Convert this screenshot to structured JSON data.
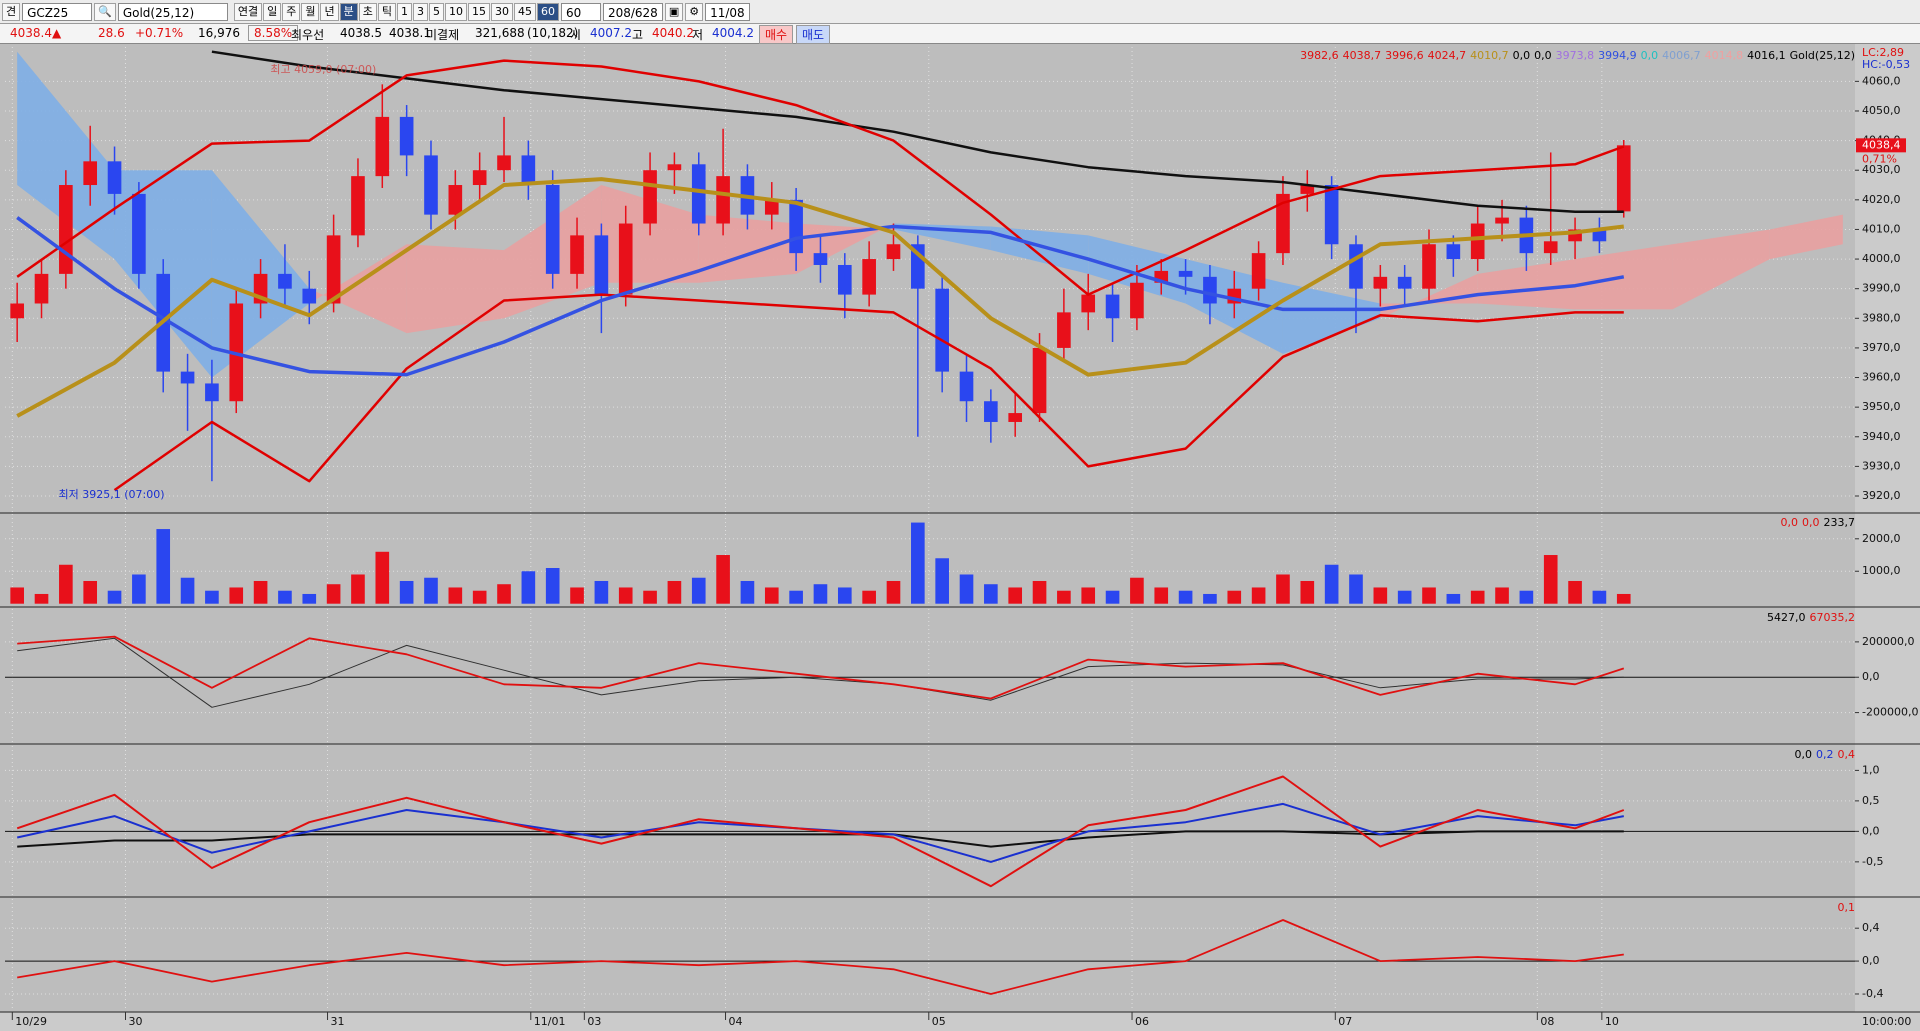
{
  "toolbar": {
    "corner": "견",
    "symbol": "GCZ25",
    "name": "Gold(25,12)",
    "buttons": [
      "연결",
      "일",
      "주",
      "월",
      "년",
      "분",
      "초",
      "틱",
      "1",
      "3",
      "5",
      "10",
      "15",
      "30",
      "45",
      "60"
    ],
    "period": "60",
    "count": "208/628",
    "date": "11/08"
  },
  "quote": {
    "price": "4038.4▲",
    "change": "28.6",
    "change_pct": "+0.71%",
    "volume": "16,976",
    "volume_pct": "8.58%",
    "best_label": "최우선",
    "best_ask": "4038.5",
    "best_bid": "4038.1",
    "oi_label": "미결제",
    "oi": "321,688",
    "oi_change": "(10,182)",
    "open_label": "시",
    "open": "4007.2",
    "high_label": "고",
    "high": "4040.2",
    "low_label": "저",
    "low": "4004.2",
    "buy": "매수",
    "sell": "매도"
  },
  "xlim": [
    -0.5,
    75.5
  ],
  "xticks": [
    {
      "value": -0.2,
      "label": "10/29"
    },
    {
      "value": 4.45,
      "label": "30"
    },
    {
      "value": 12.75,
      "label": "31"
    },
    {
      "value": 21.1,
      "label": "11/01"
    },
    {
      "value": 23.3,
      "label": "03"
    },
    {
      "value": 29.1,
      "label": "04"
    },
    {
      "value": 37.45,
      "label": "05"
    },
    {
      "value": 45.8,
      "label": "06"
    },
    {
      "value": 54.15,
      "label": "07"
    },
    {
      "value": 62.45,
      "label": "08"
    },
    {
      "value": 65.1,
      "label": "10"
    }
  ],
  "time_label": "10:00:00",
  "line_x": [
    0,
    4,
    8,
    12,
    16,
    20,
    24,
    28,
    32,
    36,
    40,
    44,
    48,
    52,
    56,
    60,
    64,
    66
  ],
  "price_panel": {
    "type": "candlestick",
    "legend": [
      {
        "text": "3982,6",
        "color": "#e01010"
      },
      {
        "text": "4038,7",
        "color": "#e01010"
      },
      {
        "text": "3996,6",
        "color": "#e01010"
      },
      {
        "text": "4024,7",
        "color": "#e01010"
      },
      {
        "text": "4010,7",
        "color": "#b8901a"
      },
      {
        "text": "0,0",
        "color": "#000000"
      },
      {
        "text": "0,0",
        "color": "#000000"
      },
      {
        "text": "3973,8",
        "color": "#a070e0"
      },
      {
        "text": "3994,9",
        "color": "#3050e0"
      },
      {
        "text": "0,0",
        "color": "#20c0c0"
      },
      {
        "text": "4006,7",
        "color": "#80a0d0"
      },
      {
        "text": "4014,8",
        "color": "#f0a0a0"
      },
      {
        "text": "4016,1",
        "color": "#000000"
      },
      {
        "text": "Gold(25,12)",
        "color": "#000000"
      }
    ],
    "lc": "LC:2,89",
    "hc": "HC:-0,53",
    "high_note": "최고 4059,0 (07:00)",
    "low_note": "최저 3925,1 (07:00)",
    "last": {
      "value": 4038.4,
      "label": "4038,4"
    },
    "last_pct": "0,71%",
    "ylim": [
      3914.6,
      4071.6
    ],
    "yticks": [
      {
        "value": 3920,
        "label": "3920,0"
      },
      {
        "value": 3930,
        "label": "3930,0"
      },
      {
        "value": 3940,
        "label": "3940,0"
      },
      {
        "value": 3950,
        "label": "3950,0"
      },
      {
        "value": 3960,
        "label": "3960,0"
      },
      {
        "value": 3970,
        "label": "3970,0"
      },
      {
        "value": 3980,
        "label": "3980,0"
      },
      {
        "value": 3990,
        "label": "3990,0"
      },
      {
        "value": 4000,
        "label": "4000,0"
      },
      {
        "value": 4010,
        "label": "4010,0"
      },
      {
        "value": 4020,
        "label": "4020,0"
      },
      {
        "value": 4030,
        "label": "4030,0"
      },
      {
        "value": 4040,
        "label": "4040,0"
      },
      {
        "value": 4050,
        "label": "4050,0"
      },
      {
        "value": 4060,
        "label": "4060,0"
      }
    ],
    "up_color": "#e8101a",
    "down_color": "#2a46f0",
    "candles": [
      [
        3980,
        3992,
        3972,
        3985
      ],
      [
        3985,
        4000,
        3980,
        3995
      ],
      [
        3995,
        4030,
        3990,
        4025
      ],
      [
        4025,
        4045,
        4018,
        4033
      ],
      [
        4033,
        4038,
        4015,
        4022
      ],
      [
        4022,
        4026,
        3990,
        3995
      ],
      [
        3995,
        4000,
        3955,
        3962
      ],
      [
        3962,
        3968,
        3942,
        3958
      ],
      [
        3958,
        3966,
        3925,
        3952
      ],
      [
        3952,
        3990,
        3948,
        3985
      ],
      [
        3985,
        4000,
        3980,
        3995
      ],
      [
        3995,
        4005,
        3984,
        3990
      ],
      [
        3990,
        3996,
        3978,
        3985
      ],
      [
        3985,
        4015,
        3982,
        4008
      ],
      [
        4008,
        4034,
        4004,
        4028
      ],
      [
        4028,
        4059,
        4024,
        4048
      ],
      [
        4048,
        4052,
        4028,
        4035
      ],
      [
        4035,
        4040,
        4010,
        4015
      ],
      [
        4015,
        4030,
        4010,
        4025
      ],
      [
        4025,
        4036,
        4020,
        4030
      ],
      [
        4030,
        4048,
        4026,
        4035
      ],
      [
        4035,
        4040,
        4020,
        4025
      ],
      [
        4025,
        4030,
        3990,
        3995
      ],
      [
        3995,
        4014,
        3990,
        4008
      ],
      [
        4008,
        4012,
        3975,
        3988
      ],
      [
        3988,
        4018,
        3984,
        4012
      ],
      [
        4012,
        4036,
        4008,
        4030
      ],
      [
        4030,
        4036,
        4022,
        4032
      ],
      [
        4032,
        4036,
        4008,
        4012
      ],
      [
        4012,
        4044,
        4008,
        4028
      ],
      [
        4028,
        4032,
        4010,
        4015
      ],
      [
        4015,
        4026,
        4010,
        4020
      ],
      [
        4020,
        4024,
        3996,
        4002
      ],
      [
        4002,
        4008,
        3992,
        3998
      ],
      [
        3998,
        4002,
        3980,
        3988
      ],
      [
        3988,
        4006,
        3984,
        4000
      ],
      [
        4000,
        4012,
        3996,
        4005
      ],
      [
        4005,
        4008,
        3940,
        3990
      ],
      [
        3990,
        3994,
        3955,
        3962
      ],
      [
        3962,
        3968,
        3945,
        3952
      ],
      [
        3952,
        3956,
        3938,
        3945
      ],
      [
        3945,
        3955,
        3940,
        3948
      ],
      [
        3948,
        3975,
        3945,
        3970
      ],
      [
        3970,
        3990,
        3966,
        3982
      ],
      [
        3982,
        3995,
        3976,
        3988
      ],
      [
        3988,
        3992,
        3972,
        3980
      ],
      [
        3980,
        3998,
        3976,
        3992
      ],
      [
        3992,
        4000,
        3988,
        3996
      ],
      [
        3996,
        4000,
        3988,
        3994
      ],
      [
        3994,
        3998,
        3978,
        3985
      ],
      [
        3985,
        3996,
        3980,
        3990
      ],
      [
        3990,
        4006,
        3986,
        4002
      ],
      [
        4002,
        4028,
        3998,
        4022
      ],
      [
        4022,
        4030,
        4016,
        4025
      ],
      [
        4025,
        4028,
        4000,
        4005
      ],
      [
        4005,
        4008,
        3975,
        3990
      ],
      [
        3990,
        3998,
        3984,
        3994
      ],
      [
        3994,
        3998,
        3984,
        3990
      ],
      [
        3990,
        4010,
        3986,
        4005
      ],
      [
        4005,
        4008,
        3994,
        4000
      ],
      [
        4000,
        4018,
        3996,
        4012
      ],
      [
        4012,
        4020,
        4006,
        4014
      ],
      [
        4014,
        4018,
        3996,
        4002
      ],
      [
        4002,
        4036,
        3998,
        4006
      ],
      [
        4006,
        4014,
        4000,
        4010
      ],
      [
        4010,
        4014,
        4002,
        4006
      ],
      [
        4016.1,
        4040.2,
        4014,
        4038.4
      ]
    ],
    "cloud": {
      "x": [
        0,
        4,
        8,
        12,
        16,
        20,
        24,
        28,
        32,
        36,
        40,
        44,
        48,
        52,
        56,
        60,
        64,
        68,
        72,
        75
      ],
      "a": [
        4070,
        4030,
        4030,
        3990,
        3975,
        3980,
        3992,
        3992,
        3995,
        4012,
        4011,
        4008,
        4000,
        3992,
        3985,
        3985,
        3983,
        3983,
        4000,
        4005
      ],
      "b": [
        4025,
        4000,
        3960,
        3985,
        4005,
        4003,
        4025,
        4015,
        4012,
        4010,
        4003,
        3995,
        3985,
        3968,
        3980,
        3995,
        4000,
        4005,
        4010,
        4015
      ],
      "up_color": "#e8a0a0",
      "down_color": "#7eaee6"
    },
    "lines": [
      {
        "color": "#101010",
        "width": 2.5,
        "values": [
          null,
          null,
          4070,
          4065,
          4061,
          4057,
          4054,
          4051,
          4048,
          4043,
          4036,
          4031,
          4028,
          4026,
          4022,
          4018,
          4016,
          4016
        ]
      },
      {
        "color": "#e00000",
        "width": 2.5,
        "values": [
          3994,
          4017,
          4039,
          4040,
          4062,
          4067,
          4065,
          4060,
          4052,
          4040,
          4015,
          3988,
          4003,
          4019,
          4028,
          4030,
          4032,
          4038
        ]
      },
      {
        "color": "#e00000",
        "width": 2.5,
        "values": [
          null,
          3922,
          3945,
          3925,
          3963,
          3986,
          3988,
          3986,
          3984,
          3982,
          3963,
          3930,
          3936,
          3967,
          3981,
          3979,
          3982,
          3982
        ]
      },
      {
        "color": "#3452e2",
        "width": 3.5,
        "values": [
          4014,
          3990,
          3970,
          3962,
          3961,
          3972,
          3986,
          3996,
          4007,
          4011,
          4009,
          4000,
          3990,
          3983,
          3983,
          3988,
          3991,
          3994
        ]
      },
      {
        "color": "#b8901a",
        "width": 4,
        "values": [
          3947,
          3965,
          3993,
          3981,
          4003,
          4025,
          4027,
          4023,
          4019,
          4009,
          3980,
          3961,
          3965,
          3986,
          4005,
          4007,
          4009,
          4011
        ]
      }
    ]
  },
  "volume_panel": {
    "type": "bar",
    "legend": [
      {
        "text": "0,0",
        "color": "#e01010"
      },
      {
        "text": "0,0",
        "color": "#e01010"
      },
      {
        "text": "233,7",
        "color": "#000000"
      }
    ],
    "ylim": [
      -71,
      2764
    ],
    "yticks": [
      {
        "value": 1000,
        "label": "1000,0"
      },
      {
        "value": 2000,
        "label": "2000,0"
      }
    ],
    "values": [
      500,
      300,
      1200,
      700,
      400,
      900,
      2300,
      800,
      400,
      500,
      700,
      400,
      300,
      600,
      900,
      1600,
      700,
      800,
      500,
      400,
      600,
      1000,
      1100,
      500,
      700,
      500,
      400,
      700,
      800,
      1500,
      700,
      500,
      400,
      600,
      500,
      400,
      700,
      2500,
      1400,
      900,
      600,
      500,
      700,
      400,
      500,
      400,
      800,
      500,
      400,
      300,
      400,
      500,
      900,
      700,
      1200,
      900,
      500,
      400,
      500,
      300,
      400,
      500,
      400,
      1500,
      700,
      400,
      300
    ]
  },
  "indicator_panels": [
    {
      "type": "line",
      "legend": [
        {
          "text": "5427,0",
          "color": "#000000"
        },
        {
          "text": "67035,2",
          "color": "#e01010"
        }
      ],
      "ylim": [
        -372000,
        386000
      ],
      "yticks": [
        {
          "value": 200000,
          "label": "200000,0"
        },
        {
          "value": 0,
          "label": "0,0"
        },
        {
          "value": -200000,
          "label": "-200000,0"
        }
      ],
      "series": [
        {
          "color": "#303030",
          "width": 1,
          "values": [
            150000,
            220000,
            -170000,
            -40000,
            180000,
            40000,
            -100000,
            -20000,
            0,
            -40000,
            -130000,
            60000,
            80000,
            70000,
            -60000,
            -10000,
            -10000,
            0
          ]
        },
        {
          "color": "#e01010",
          "width": 1.8,
          "values": [
            190000,
            230000,
            -60000,
            220000,
            130000,
            -40000,
            -60000,
            80000,
            20000,
            -40000,
            -120000,
            100000,
            60000,
            80000,
            -100000,
            20000,
            -40000,
            50000
          ]
        }
      ]
    },
    {
      "type": "line",
      "legend": [
        {
          "text": "0,0",
          "color": "#000000"
        },
        {
          "text": "0,2",
          "color": "#1a30d0"
        },
        {
          "text": "0,4",
          "color": "#e01010"
        }
      ],
      "ylim": [
        -1.06,
        1.4
      ],
      "yticks": [
        {
          "value": 1,
          "label": "1,0"
        },
        {
          "value": 0.5,
          "label": "0,5"
        },
        {
          "value": 0,
          "label": "0,0"
        },
        {
          "value": -0.5,
          "label": "-0,5"
        }
      ],
      "series": [
        {
          "color": "#101010",
          "width": 2,
          "values": [
            -0.25,
            -0.15,
            -0.15,
            -0.05,
            -0.05,
            -0.05,
            -0.05,
            -0.05,
            -0.05,
            -0.05,
            -0.25,
            -0.1,
            0,
            0,
            -0.05,
            0,
            0,
            0
          ]
        },
        {
          "color": "#1a30d0",
          "width": 2,
          "values": [
            -0.1,
            0.25,
            -0.35,
            0,
            0.35,
            0.15,
            -0.1,
            0.15,
            0.05,
            -0.05,
            -0.5,
            0,
            0.15,
            0.45,
            -0.05,
            0.25,
            0.1,
            0.25
          ]
        },
        {
          "color": "#e01010",
          "width": 2,
          "values": [
            0.05,
            0.6,
            -0.6,
            0.15,
            0.55,
            0.15,
            -0.2,
            0.2,
            0.05,
            -0.1,
            -0.9,
            0.1,
            0.35,
            0.9,
            -0.25,
            0.35,
            0.05,
            0.35
          ]
        }
      ]
    },
    {
      "type": "line",
      "legend": [
        {
          "text": "0,1",
          "color": "#e01010"
        }
      ],
      "ylim": [
        -0.607,
        0.755
      ],
      "yticks": [
        {
          "value": 0.4,
          "label": "0,4"
        },
        {
          "value": 0,
          "label": "0,0"
        },
        {
          "value": -0.4,
          "label": "-0,4"
        }
      ],
      "series": [
        {
          "color": "#e01010",
          "width": 1.8,
          "values": [
            -0.2,
            0,
            -0.25,
            -0.05,
            0.1,
            -0.05,
            0,
            -0.05,
            0,
            -0.1,
            -0.4,
            -0.1,
            0,
            0.5,
            0,
            0.05,
            0,
            0.08
          ]
        }
      ]
    }
  ]
}
